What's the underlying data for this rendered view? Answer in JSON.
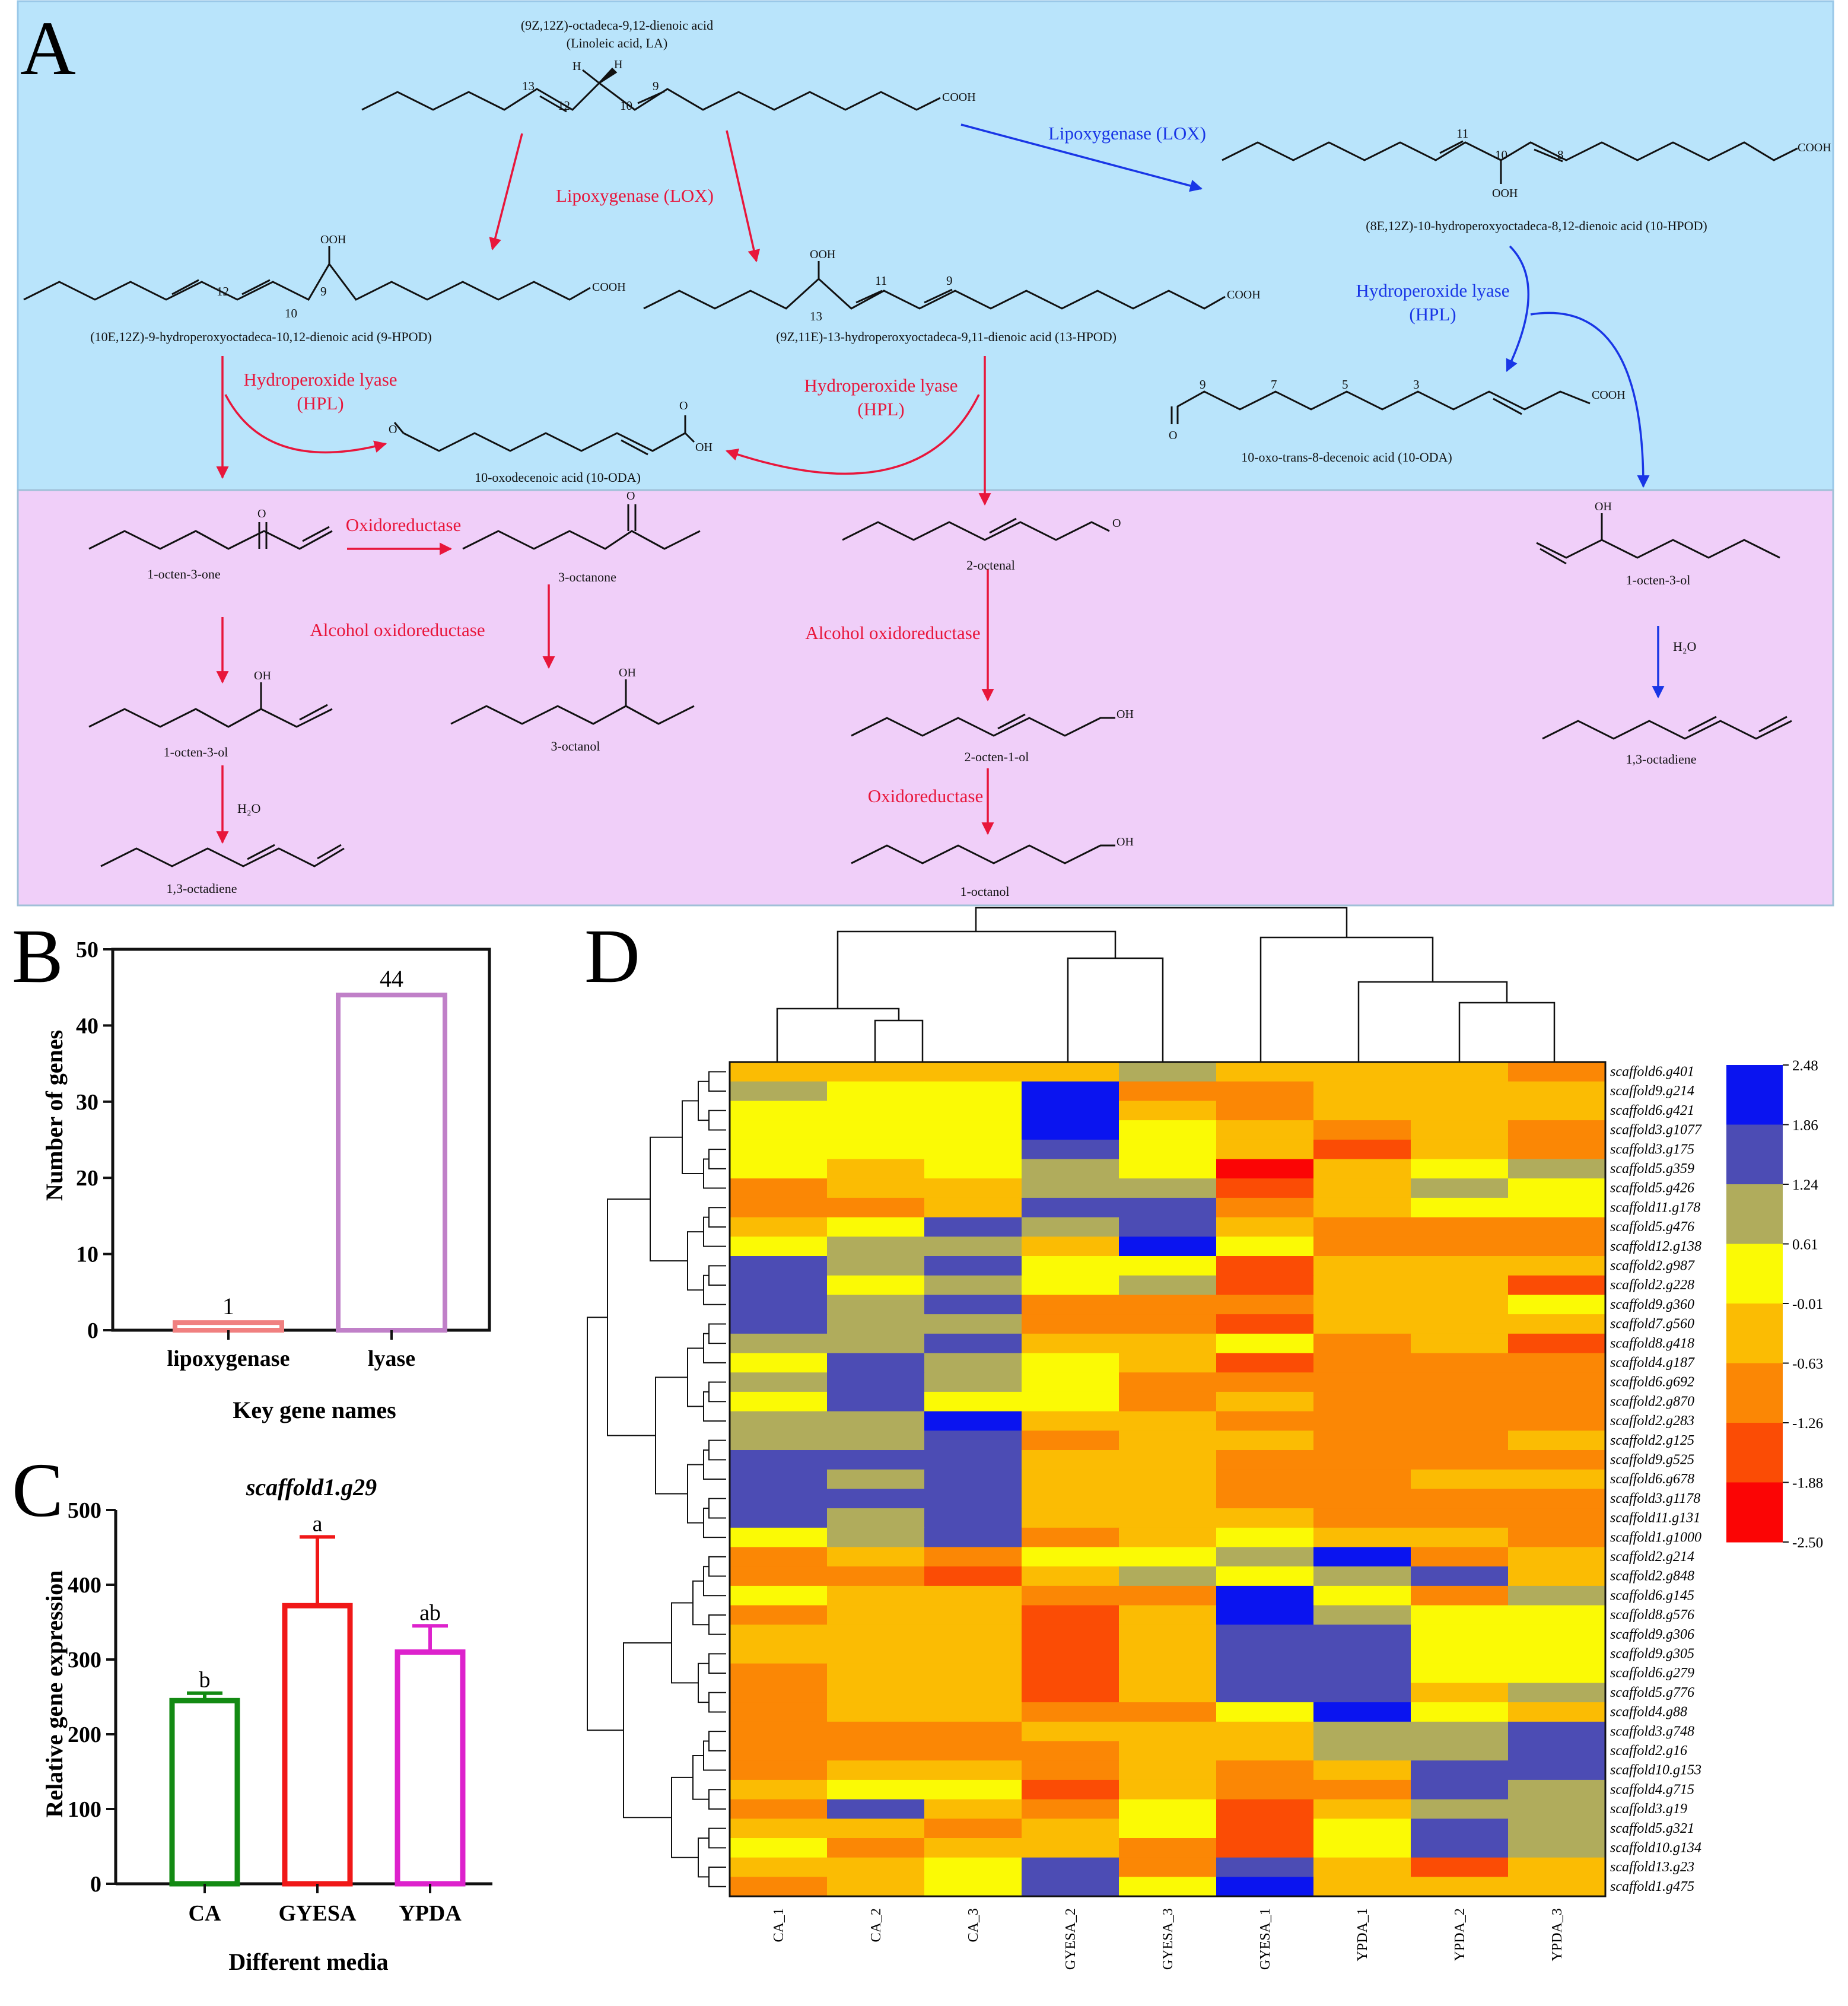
{
  "panelA": {
    "panel_label": "A",
    "enzyme_labels": {
      "lox_red": "Lipoxygenase (LOX)",
      "lox_blue": "Lipoxygenase (LOX)",
      "hpl_left_1": "Hydroperoxide lyase",
      "hpl_left_2": "(HPL)",
      "hpl_mid_1": "Hydroperoxide lyase",
      "hpl_mid_2": "(HPL)",
      "hpl_right_1": "Hydroperoxide lyase",
      "hpl_right_2": "(HPL)",
      "oxidoreductase_1": "Oxidoreductase",
      "alcohol_oxidoreductase_1": "Alcohol oxidoreductase",
      "alcohol_oxidoreductase_2": "Alcohol oxidoreductase",
      "oxidoreductase_2": "Oxidoreductase"
    },
    "water_labels": [
      "H₂O",
      "H₂O"
    ],
    "compounds": {
      "la_name_1": "(9Z,12Z)-octadeca-9,12-dienoic acid",
      "la_name_2": "(Linoleic acid, LA)",
      "hpod9": "(10E,12Z)-9-hydroperoxyoctadeca-10,12-dienoic acid (9-HPOD)",
      "hpod13": "(9Z,11E)-13-hydroperoxyoctadeca-9,11-dienoic acid (13-HPOD)",
      "hpod10": "(8E,12Z)-10-hydroperoxyoctadeca-8,12-dienoic acid (10-HPOD)",
      "oda_left": "10-oxodecenoic acid (10-ODA)",
      "oda_right": "10-oxo-trans-8-decenoic acid (10-ODA)",
      "octen3one": "1-octen-3-one",
      "octanone3": "3-octanone",
      "octenal2": "2-octenal",
      "octen3ol_right": "1-octen-3-ol",
      "octen3ol_left": "1-octen-3-ol",
      "octanol3": "3-octanol",
      "octen1ol2": "2-octen-1-ol",
      "octadiene_right": "1,3-octadiene",
      "octadiene_left": "1,3-octadiene",
      "octanol1": "1-octanol"
    },
    "atoms": {
      "cooh": "COOH",
      "ooh": "OOH",
      "oh": "OH",
      "o": "O",
      "h": "H"
    },
    "locants": {
      "la": [
        "13",
        "12",
        "10",
        "9"
      ],
      "hpod9": [
        "12",
        "10",
        "9"
      ],
      "hpod13": [
        "13",
        "11",
        "9"
      ],
      "hpod10": [
        "11",
        "10",
        "8"
      ],
      "oda_right": [
        "9",
        "7",
        "5",
        "3"
      ]
    },
    "colors": {
      "top_bg": "#b9e4fb",
      "bottom_bg": "#f0cff9",
      "red": "#e8163b",
      "blue": "#1936e6"
    }
  },
  "panelB": {
    "panel_label": "B",
    "chart_data": {
      "type": "bar",
      "categories": [
        "lipoxygenase",
        "lyase"
      ],
      "values": [
        1,
        44
      ],
      "data_labels": [
        "1",
        "44"
      ],
      "ylabel": "Number of genes",
      "xlabel": "Key gene names",
      "ylim": [
        0,
        50
      ],
      "yticks": [
        0,
        10,
        20,
        30,
        40,
        50
      ],
      "ytick_labels": [
        "0",
        "10",
        "20",
        "30",
        "40",
        "50"
      ],
      "colors": [
        "#f08080",
        "#c080c8"
      ]
    }
  },
  "panelC": {
    "panel_label": "C",
    "chart_data": {
      "type": "bar",
      "title": "scaffold1.g29",
      "categories": [
        "CA",
        "GYESA",
        "YPDA"
      ],
      "values": [
        245,
        372,
        310
      ],
      "error": [
        10,
        92,
        35
      ],
      "significance": [
        "b",
        "a",
        "ab"
      ],
      "ylabel": "Relative gene expression",
      "xlabel": "Different media",
      "ylim": [
        0,
        500
      ],
      "yticks": [
        0,
        100,
        200,
        300,
        400,
        500
      ],
      "ytick_labels": [
        "0",
        "100",
        "200",
        "300",
        "400",
        "500"
      ],
      "colors": [
        "#138a13",
        "#f01818",
        "#dd22cc"
      ]
    }
  },
  "panelD": {
    "panel_label": "D",
    "chart_data": {
      "type": "heatmap",
      "columns": [
        "CA_1",
        "CA_2",
        "CA_3",
        "GYESA_2",
        "GYESA_3",
        "GYESA_1",
        "YPDA_1",
        "YPDA_2",
        "YPDA_3"
      ],
      "rows": [
        "scaffold6.g401",
        "scaffold9.g214",
        "scaffold6.g421",
        "scaffold3.g1077",
        "scaffold3.g175",
        "scaffold5.g359",
        "scaffold5.g426",
        "scaffold11.g178",
        "scaffold5.g476",
        "scaffold12.g138",
        "scaffold2.g987",
        "scaffold2.g228",
        "scaffold9.g360",
        "scaffold7.g560",
        "scaffold8.g418",
        "scaffold4.g187",
        "scaffold6.g692",
        "scaffold2.g870",
        "scaffold2.g283",
        "scaffold2.g125",
        "scaffold9.g525",
        "scaffold6.g678",
        "scaffold3.g1178",
        "scaffold11.g131",
        "scaffold1.g1000",
        "scaffold2.g214",
        "scaffold2.g848",
        "scaffold6.g145",
        "scaffold8.g576",
        "scaffold9.g306",
        "scaffold9.g305",
        "scaffold6.g279",
        "scaffold5.g776",
        "scaffold4.g88",
        "scaffold3.g748",
        "scaffold2.g16",
        "scaffold10.g153",
        "scaffold4.g715",
        "scaffold3.g19",
        "scaffold5.g321",
        "scaffold10.g134",
        "scaffold13.g23",
        "scaffold1.g475"
      ],
      "legend_ticks": [
        "2.48",
        "1.86",
        "1.24",
        "0.61",
        "-0.01",
        "-0.63",
        "-1.26",
        "-1.88",
        "-2.50"
      ],
      "bins": [
        {
          "color": "#0a14f0"
        },
        {
          "color": "#4c4cb4"
        },
        {
          "color": "#b0ac5c"
        },
        {
          "color": "#fbfa05"
        },
        {
          "color": "#fbbc03"
        },
        {
          "color": "#fb8705"
        },
        {
          "color": "#fb4c05"
        },
        {
          "color": "#fb0505"
        }
      ],
      "matrix": [
        [
          4,
          4,
          4,
          4,
          2,
          4,
          4,
          4,
          5
        ],
        [
          2,
          3,
          3,
          0,
          5,
          5,
          4,
          4,
          4
        ],
        [
          3,
          3,
          3,
          0,
          4,
          5,
          4,
          4,
          4
        ],
        [
          3,
          3,
          3,
          0,
          3,
          4,
          5,
          4,
          5
        ],
        [
          3,
          3,
          3,
          1,
          3,
          4,
          6,
          4,
          5
        ],
        [
          3,
          4,
          3,
          2,
          3,
          7,
          4,
          3,
          2
        ],
        [
          5,
          4,
          4,
          2,
          2,
          6,
          4,
          2,
          3
        ],
        [
          5,
          5,
          4,
          1,
          1,
          5,
          4,
          3,
          3
        ],
        [
          4,
          3,
          1,
          2,
          1,
          4,
          5,
          5,
          5
        ],
        [
          3,
          2,
          2,
          4,
          0,
          3,
          5,
          5,
          5
        ],
        [
          1,
          2,
          1,
          3,
          3,
          6,
          4,
          4,
          4
        ],
        [
          1,
          3,
          2,
          3,
          2,
          6,
          4,
          4,
          6
        ],
        [
          1,
          2,
          1,
          5,
          5,
          5,
          4,
          4,
          3
        ],
        [
          1,
          2,
          2,
          5,
          5,
          6,
          4,
          4,
          4
        ],
        [
          2,
          2,
          1,
          4,
          4,
          3,
          5,
          4,
          6
        ],
        [
          3,
          1,
          2,
          3,
          4,
          6,
          5,
          5,
          5
        ],
        [
          2,
          1,
          2,
          3,
          5,
          5,
          5,
          5,
          5
        ],
        [
          3,
          1,
          3,
          3,
          5,
          4,
          5,
          5,
          5
        ],
        [
          2,
          2,
          0,
          4,
          4,
          5,
          5,
          5,
          5
        ],
        [
          2,
          2,
          1,
          5,
          4,
          4,
          5,
          5,
          4
        ],
        [
          1,
          1,
          1,
          4,
          4,
          5,
          5,
          5,
          5
        ],
        [
          1,
          2,
          1,
          4,
          4,
          5,
          5,
          4,
          4
        ],
        [
          1,
          1,
          1,
          4,
          4,
          5,
          5,
          5,
          5
        ],
        [
          1,
          2,
          1,
          4,
          4,
          4,
          5,
          5,
          5
        ],
        [
          3,
          2,
          1,
          5,
          4,
          3,
          4,
          4,
          5
        ],
        [
          5,
          4,
          5,
          3,
          3,
          2,
          0,
          5,
          4
        ],
        [
          5,
          5,
          6,
          4,
          2,
          3,
          2,
          1,
          4
        ],
        [
          3,
          4,
          4,
          5,
          5,
          0,
          3,
          5,
          2
        ],
        [
          5,
          4,
          4,
          6,
          4,
          0,
          2,
          3,
          3
        ],
        [
          4,
          4,
          4,
          6,
          4,
          1,
          1,
          3,
          3
        ],
        [
          4,
          4,
          4,
          6,
          4,
          1,
          1,
          3,
          3
        ],
        [
          5,
          4,
          4,
          6,
          4,
          1,
          1,
          3,
          3
        ],
        [
          5,
          4,
          4,
          6,
          4,
          1,
          1,
          4,
          2
        ],
        [
          5,
          4,
          4,
          5,
          5,
          3,
          0,
          3,
          4
        ],
        [
          5,
          5,
          5,
          4,
          4,
          4,
          2,
          2,
          1
        ],
        [
          5,
          5,
          5,
          5,
          4,
          4,
          2,
          2,
          1
        ],
        [
          5,
          4,
          4,
          5,
          4,
          5,
          4,
          1,
          1
        ],
        [
          4,
          3,
          3,
          6,
          4,
          5,
          5,
          1,
          2
        ],
        [
          5,
          1,
          4,
          5,
          3,
          6,
          4,
          2,
          2
        ],
        [
          4,
          4,
          5,
          4,
          3,
          6,
          3,
          1,
          2
        ],
        [
          3,
          5,
          4,
          4,
          5,
          6,
          3,
          1,
          2
        ],
        [
          4,
          4,
          3,
          1,
          5,
          1,
          4,
          6,
          4
        ],
        [
          5,
          4,
          3,
          1,
          3,
          0,
          4,
          4,
          4
        ]
      ]
    }
  }
}
